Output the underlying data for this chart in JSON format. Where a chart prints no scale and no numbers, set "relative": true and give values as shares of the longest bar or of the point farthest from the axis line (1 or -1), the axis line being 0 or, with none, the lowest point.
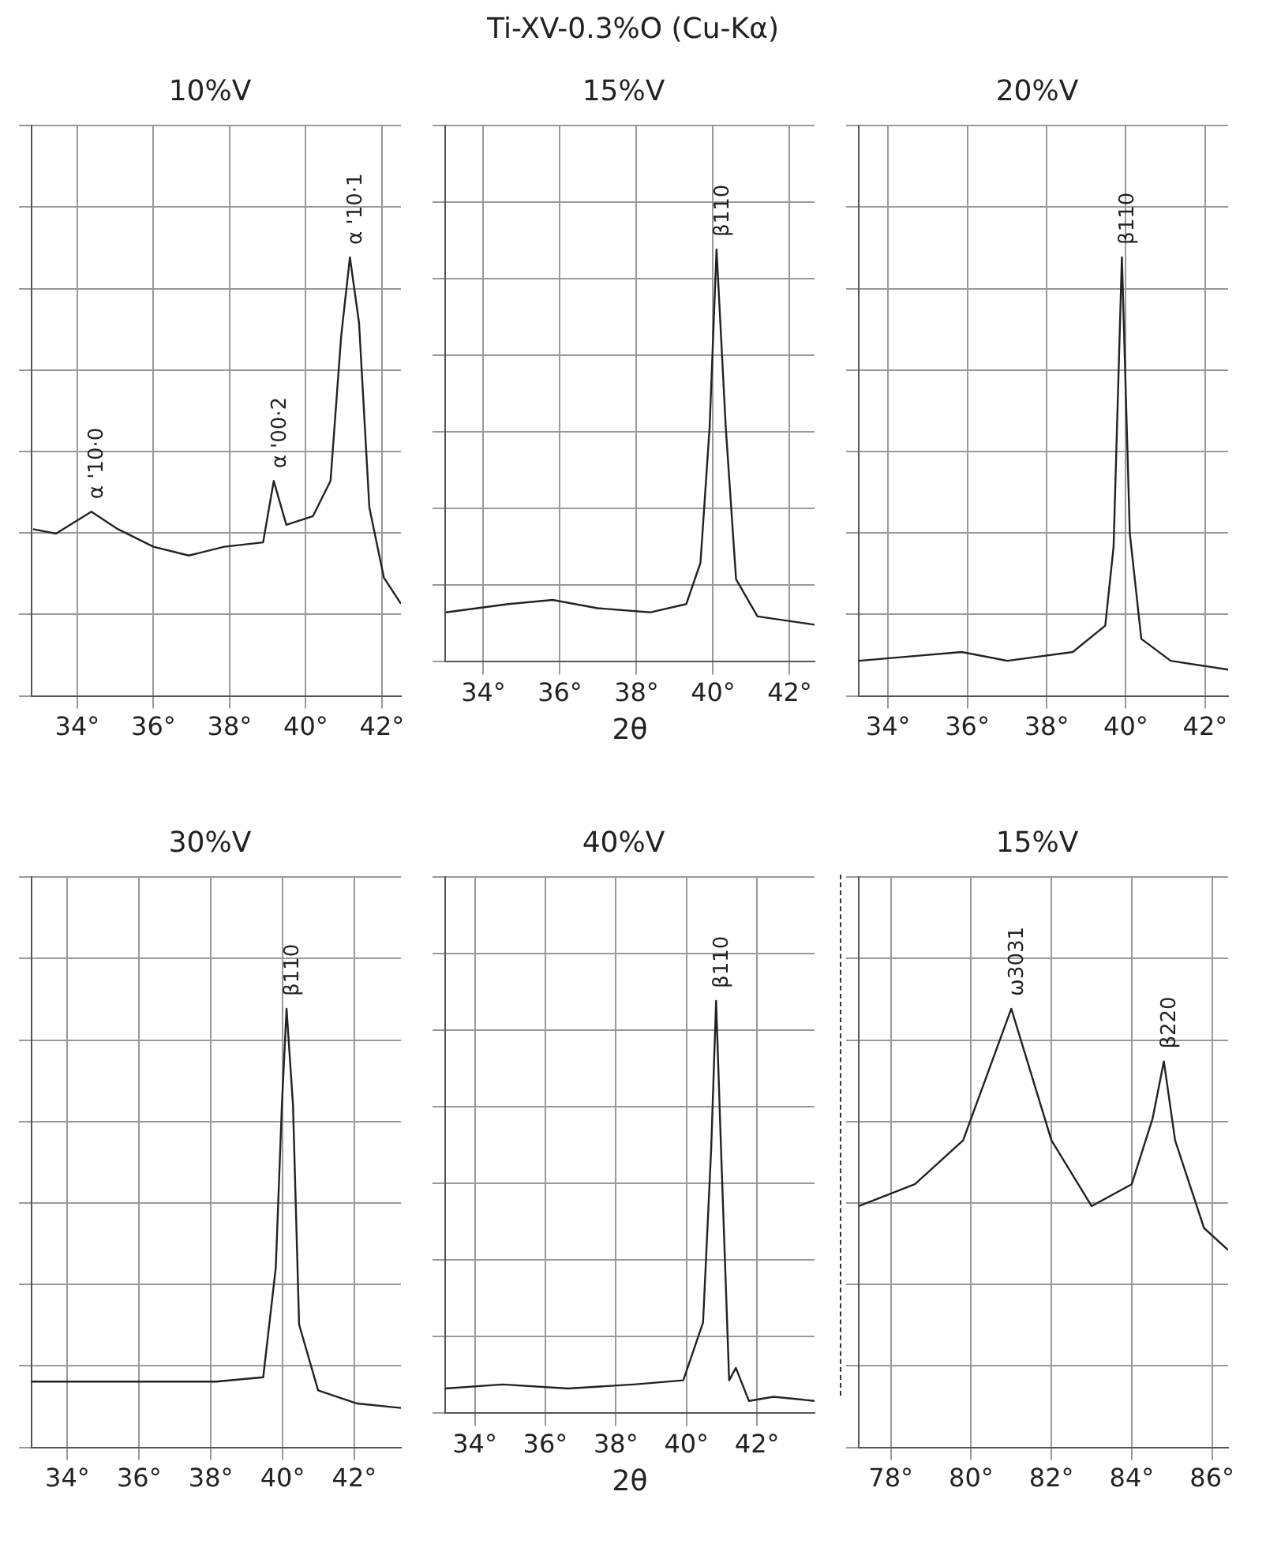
{
  "chart_data": [
    {
      "type": "line",
      "title": "10%V",
      "relative": true,
      "grid": true,
      "legend": false,
      "xlim": [
        32.8,
        42.5
      ],
      "xticks": [
        {
          "value": 34,
          "label": "34°"
        },
        {
          "value": 36,
          "label": "36°"
        },
        {
          "value": 38,
          "label": "38°"
        },
        {
          "value": 40,
          "label": "40°"
        },
        {
          "value": 42,
          "label": "42°"
        }
      ],
      "series": [
        {
          "color": "#222222",
          "x": [
            32.84,
            33.44,
            34.37,
            35.07,
            36.0,
            36.93,
            37.86,
            38.88,
            39.16,
            39.49,
            40.19,
            40.65,
            40.93,
            41.16,
            41.4,
            41.67,
            42.05,
            42.5
          ],
          "values": [
            0.38,
            0.37,
            0.42,
            0.38,
            0.34,
            0.32,
            0.34,
            0.35,
            0.49,
            0.39,
            0.41,
            0.49,
            0.82,
            1.0,
            0.85,
            0.43,
            0.27,
            0.21
          ]
        }
      ],
      "annotations": [
        {
          "text": "α '10·0",
          "x": 34.37,
          "y": 0.42
        },
        {
          "text": "α '00·2",
          "x": 39.16,
          "y": 0.49
        },
        {
          "text": "α '10·1",
          "x": 41.16,
          "y": 1.0
        }
      ]
    },
    {
      "type": "line",
      "title": "15%V",
      "xlabel": "2θ",
      "relative": true,
      "grid": true,
      "legend": false,
      "xlim": [
        33.0,
        42.65
      ],
      "xticks": [
        {
          "value": 34,
          "label": "34°"
        },
        {
          "value": 36,
          "label": "36°"
        },
        {
          "value": 38,
          "label": "38°"
        },
        {
          "value": 40,
          "label": "40°"
        },
        {
          "value": 42,
          "label": "42°"
        }
      ],
      "series": [
        {
          "color": "#222222",
          "x": [
            33.02,
            34.65,
            35.81,
            36.98,
            38.37,
            39.3,
            39.67,
            39.91,
            40.09,
            40.33,
            40.6,
            41.16,
            42.65
          ],
          "values": [
            0.12,
            0.14,
            0.15,
            0.13,
            0.12,
            0.14,
            0.24,
            0.57,
            1.0,
            0.57,
            0.2,
            0.11,
            0.09
          ]
        }
      ],
      "annotations": [
        "Ti-XV-0.3%O (Cu-Kα)",
        {
          "text": "β110",
          "x": 40.09,
          "y": 1.0
        }
      ]
    },
    {
      "type": "line",
      "title": "20%V",
      "relative": true,
      "grid": true,
      "legend": false,
      "xlim": [
        33.26,
        42.58
      ],
      "xticks": [
        {
          "value": 34,
          "label": "34°"
        },
        {
          "value": 36,
          "label": "36°"
        },
        {
          "value": 38,
          "label": "38°"
        },
        {
          "value": 40,
          "label": "40°"
        },
        {
          "value": 42,
          "label": "42°"
        }
      ],
      "series": [
        {
          "color": "#222222",
          "x": [
            33.26,
            34.54,
            35.86,
            37.01,
            38.66,
            39.48,
            39.69,
            39.9,
            40.1,
            40.39,
            41.13,
            42.58
          ],
          "values": [
            0.08,
            0.09,
            0.1,
            0.08,
            0.1,
            0.16,
            0.34,
            1.0,
            0.37,
            0.13,
            0.08,
            0.06
          ]
        }
      ],
      "annotations": [
        {
          "text": "β110",
          "x": 39.9,
          "y": 1.0
        }
      ]
    },
    {
      "type": "line",
      "title": "30%V",
      "relative": true,
      "grid": true,
      "legend": false,
      "xlim": [
        33.0,
        43.3
      ],
      "xticks": [
        {
          "value": 34,
          "label": "34°"
        },
        {
          "value": 36,
          "label": "36°"
        },
        {
          "value": 38,
          "label": "38°"
        },
        {
          "value": 40,
          "label": "40°"
        },
        {
          "value": 42,
          "label": "42°"
        }
      ],
      "series": [
        {
          "color": "#222222",
          "x": [
            33.0,
            34.66,
            36.4,
            38.15,
            39.46,
            39.81,
            39.98,
            40.11,
            40.29,
            40.46,
            40.99,
            42.08,
            43.3
          ],
          "values": [
            0.15,
            0.15,
            0.15,
            0.15,
            0.16,
            0.41,
            0.78,
            1.0,
            0.78,
            0.28,
            0.13,
            0.1,
            0.09
          ]
        }
      ],
      "annotations": [
        {
          "text": "β110",
          "x": 40.11,
          "y": 1.0
        }
      ]
    },
    {
      "type": "line",
      "title": "40%V",
      "xlabel": "2θ",
      "relative": true,
      "grid": true,
      "legend": false,
      "xlim": [
        33.16,
        43.63
      ],
      "xticks": [
        {
          "value": 34,
          "label": "34°"
        },
        {
          "value": 36,
          "label": "36°"
        },
        {
          "value": 38,
          "label": "38°"
        },
        {
          "value": 40,
          "label": "40°"
        },
        {
          "value": 42,
          "label": "42°"
        }
      ],
      "series": [
        {
          "color": "#222222",
          "x": [
            33.16,
            34.79,
            36.65,
            38.51,
            39.91,
            40.47,
            40.7,
            40.84,
            40.98,
            41.21,
            41.4,
            41.77,
            42.47,
            43.63
          ],
          "values": [
            0.06,
            0.07,
            0.06,
            0.07,
            0.08,
            0.22,
            0.64,
            1.0,
            0.64,
            0.08,
            0.11,
            0.03,
            0.04,
            0.03
          ]
        }
      ],
      "annotations": [
        {
          "text": "β110",
          "x": 40.84,
          "y": 1.0
        }
      ]
    },
    {
      "type": "line",
      "title": "15%V",
      "relative": true,
      "grid": true,
      "legend": false,
      "xlim": [
        77.2,
        86.4
      ],
      "xticks": [
        {
          "value": 78,
          "label": "78°"
        },
        {
          "value": 80,
          "label": "80°"
        },
        {
          "value": 82,
          "label": "82°"
        },
        {
          "value": 84,
          "label": "84°"
        },
        {
          "value": 86,
          "label": "86°"
        }
      ],
      "series": [
        {
          "color": "#222222",
          "x": [
            77.2,
            78.6,
            79.8,
            81.0,
            82.0,
            83.0,
            84.0,
            84.52,
            84.8,
            85.08,
            85.8,
            86.4
          ],
          "values": [
            0.55,
            0.6,
            0.7,
            1.0,
            0.7,
            0.55,
            0.6,
            0.75,
            0.88,
            0.7,
            0.5,
            0.45
          ]
        }
      ],
      "annotations": [
        {
          "text": "ω3031",
          "x": 81.0,
          "y": 1.0
        },
        {
          "text": "β220",
          "x": 84.8,
          "y": 0.88
        }
      ]
    }
  ]
}
